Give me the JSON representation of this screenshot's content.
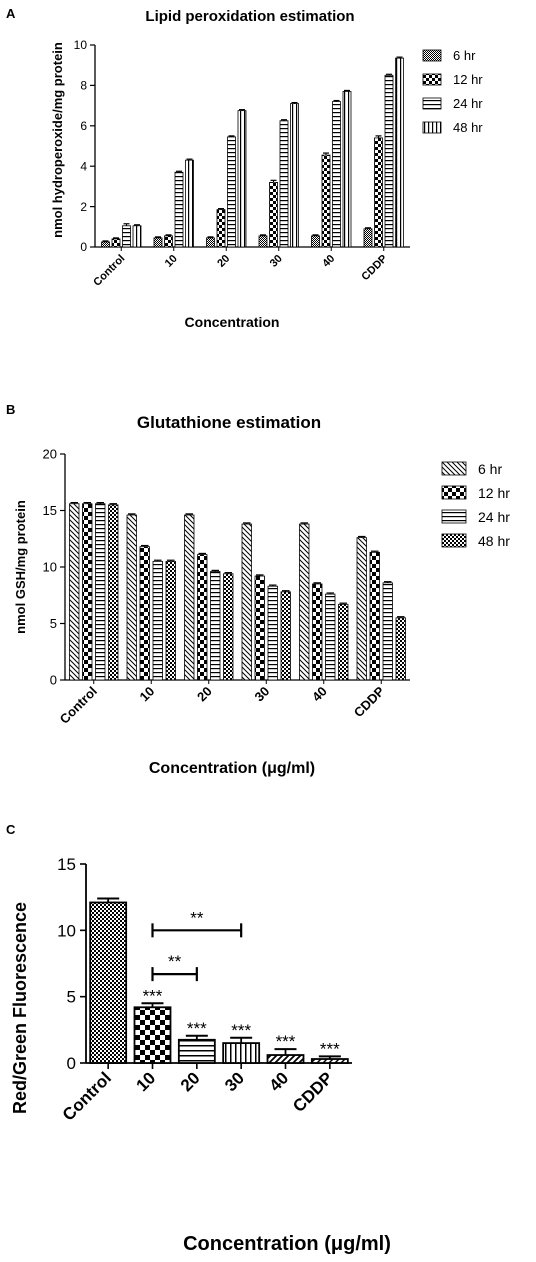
{
  "chart_data": [
    {
      "panel": "A",
      "type": "bar",
      "title": "Lipid peroxidation estimation",
      "xlabel": "Concentration",
      "ylabel": "nmol hydroperoxide/mg protein",
      "ylim": [
        0,
        10
      ],
      "yticks": [
        "0",
        "2",
        "4",
        "6",
        "8",
        "10"
      ],
      "categories": [
        "Control",
        "10",
        "20",
        "30",
        "40",
        "CDDP"
      ],
      "series": [
        {
          "name": "6 hr",
          "values": [
            0.25,
            0.45,
            0.45,
            0.55,
            0.55,
            0.9
          ],
          "errors": [
            0.05,
            0.05,
            0.05,
            0.05,
            0.05,
            0.05
          ]
        },
        {
          "name": "12 hr",
          "values": [
            0.4,
            0.55,
            1.85,
            3.2,
            4.55,
            5.4
          ],
          "errors": [
            0.05,
            0.05,
            0.05,
            0.1,
            0.1,
            0.1
          ]
        },
        {
          "name": "24 hr",
          "values": [
            1.05,
            3.7,
            5.45,
            6.25,
            7.2,
            8.5
          ],
          "errors": [
            0.1,
            0.05,
            0.05,
            0.05,
            0.05,
            0.05
          ]
        },
        {
          "name": "48 hr",
          "values": [
            1.05,
            4.3,
            6.75,
            7.1,
            7.7,
            9.35
          ],
          "errors": [
            0.05,
            0.05,
            0.05,
            0.05,
            0.05,
            0.05
          ]
        }
      ],
      "legend_position": "right",
      "grid": false
    },
    {
      "panel": "B",
      "type": "bar",
      "title": "Glutathione estimation",
      "xlabel": "Concentration (μg/ml)",
      "ylabel": "nmol GSH/mg protein",
      "ylim": [
        0,
        20
      ],
      "yticks": [
        "0",
        "5",
        "10",
        "15",
        "20"
      ],
      "categories": [
        "Control",
        "10",
        "20",
        "30",
        "40",
        "CDDP"
      ],
      "series": [
        {
          "name": "6 hr",
          "values": [
            15.6,
            14.6,
            14.6,
            13.8,
            13.8,
            12.6
          ],
          "errors": [
            0.1,
            0.1,
            0.1,
            0.1,
            0.1,
            0.1
          ]
        },
        {
          "name": "12 hr",
          "values": [
            15.6,
            11.8,
            11.1,
            9.2,
            8.5,
            11.3
          ],
          "errors": [
            0.1,
            0.1,
            0.1,
            0.1,
            0.1,
            0.1
          ]
        },
        {
          "name": "24 hr",
          "values": [
            15.6,
            10.5,
            9.6,
            8.3,
            7.6,
            8.6
          ],
          "errors": [
            0.1,
            0.1,
            0.1,
            0.1,
            0.1,
            0.1
          ]
        },
        {
          "name": "48 hr",
          "values": [
            15.5,
            10.5,
            9.4,
            7.8,
            6.7,
            5.5
          ],
          "errors": [
            0.1,
            0.1,
            0.1,
            0.1,
            0.1,
            0.1
          ]
        }
      ],
      "legend_position": "right",
      "grid": false
    },
    {
      "panel": "C",
      "type": "bar",
      "title": "",
      "xlabel": "Concentration (μg/ml)",
      "ylabel": "Red/Green Fluorescence",
      "ylim": [
        0,
        15
      ],
      "yticks": [
        "0",
        "5",
        "10",
        "15"
      ],
      "categories": [
        "Control",
        "10",
        "20",
        "30",
        "40",
        "CDDP"
      ],
      "values": [
        12.1,
        4.2,
        1.75,
        1.5,
        0.6,
        0.3
      ],
      "errors": [
        0.3,
        0.3,
        0.3,
        0.4,
        0.45,
        0.2
      ],
      "significance": [
        "",
        "***",
        "***",
        "***",
        "***",
        "***"
      ],
      "brackets": [
        {
          "from": "10",
          "to": "20",
          "label": "**"
        },
        {
          "from": "10",
          "to": "30",
          "label": "**"
        }
      ],
      "grid": false
    }
  ]
}
